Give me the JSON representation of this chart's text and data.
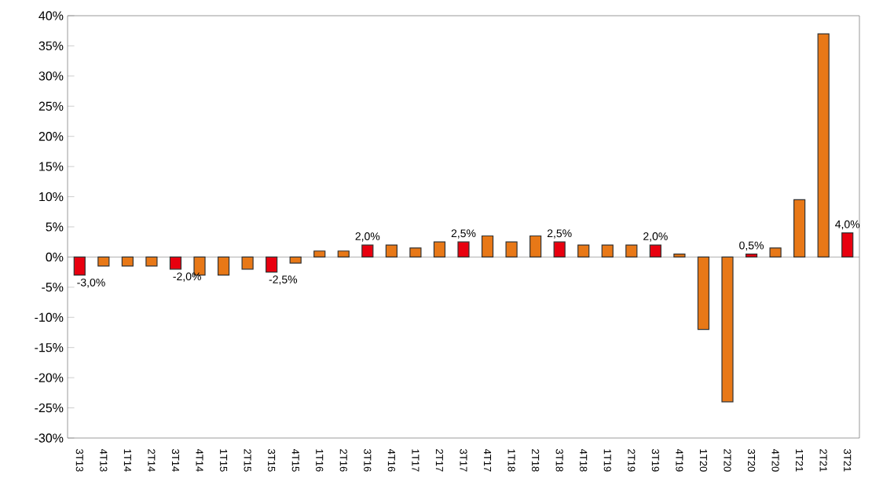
{
  "chart_data": {
    "type": "bar",
    "categories": [
      "3T13",
      "4T13",
      "1T14",
      "2T14",
      "3T14",
      "4T14",
      "1T15",
      "2T15",
      "3T15",
      "4T15",
      "1T16",
      "2T16",
      "3T16",
      "4T16",
      "1T17",
      "2T17",
      "3T17",
      "4T17",
      "1T18",
      "2T18",
      "3T18",
      "4T18",
      "1T19",
      "2T19",
      "3T19",
      "4T19",
      "1T20",
      "2T20",
      "3T20",
      "4T20",
      "1T21",
      "2T21",
      "3T21"
    ],
    "values": [
      -3.0,
      -1.5,
      -1.5,
      -1.5,
      -2.0,
      -3.0,
      -3.0,
      -2.0,
      -2.5,
      -1.0,
      1.0,
      1.0,
      2.0,
      2.0,
      1.5,
      2.5,
      2.5,
      3.5,
      2.5,
      3.5,
      2.5,
      2.0,
      2.0,
      2.0,
      2.0,
      0.5,
      -12.0,
      -24.0,
      0.5,
      1.5,
      9.5,
      37.0,
      4.0
    ],
    "colors": [
      "#e8000f",
      "#e87817",
      "#e87817",
      "#e87817",
      "#e8000f",
      "#e87817",
      "#e87817",
      "#e87817",
      "#e8000f",
      "#e87817",
      "#e87817",
      "#e87817",
      "#e8000f",
      "#e87817",
      "#e87817",
      "#e87817",
      "#e8000f",
      "#e87817",
      "#e87817",
      "#e87817",
      "#e8000f",
      "#e87817",
      "#e87817",
      "#e87817",
      "#e8000f",
      "#e87817",
      "#e87817",
      "#e87817",
      "#e8000f",
      "#e87817",
      "#e87817",
      "#e87817",
      "#e8000f"
    ],
    "value_labels": [
      "-3,0%",
      null,
      null,
      null,
      "-2,0%",
      null,
      null,
      null,
      "-2,5%",
      null,
      null,
      null,
      "2,0%",
      null,
      null,
      null,
      "2,5%",
      null,
      null,
      null,
      "2,5%",
      null,
      null,
      null,
      "2,0%",
      null,
      null,
      null,
      "0,5%",
      null,
      null,
      null,
      "4,0%"
    ],
    "ylim": [
      -30,
      40
    ],
    "yticks": [
      {
        "value": -30,
        "label": "-30%"
      },
      {
        "value": -25,
        "label": "-25%"
      },
      {
        "value": -20,
        "label": "-20%"
      },
      {
        "value": -15,
        "label": "-15%"
      },
      {
        "value": -10,
        "label": "-10%"
      },
      {
        "value": -5,
        "label": "-5%"
      },
      {
        "value": 0,
        "label": "0%"
      },
      {
        "value": 5,
        "label": "5%"
      },
      {
        "value": 10,
        "label": "10%"
      },
      {
        "value": 15,
        "label": "15%"
      },
      {
        "value": 20,
        "label": "20%"
      },
      {
        "value": 25,
        "label": "25%"
      },
      {
        "value": 30,
        "label": "30%"
      },
      {
        "value": 35,
        "label": "35%"
      },
      {
        "value": 40,
        "label": "40%"
      }
    ]
  }
}
